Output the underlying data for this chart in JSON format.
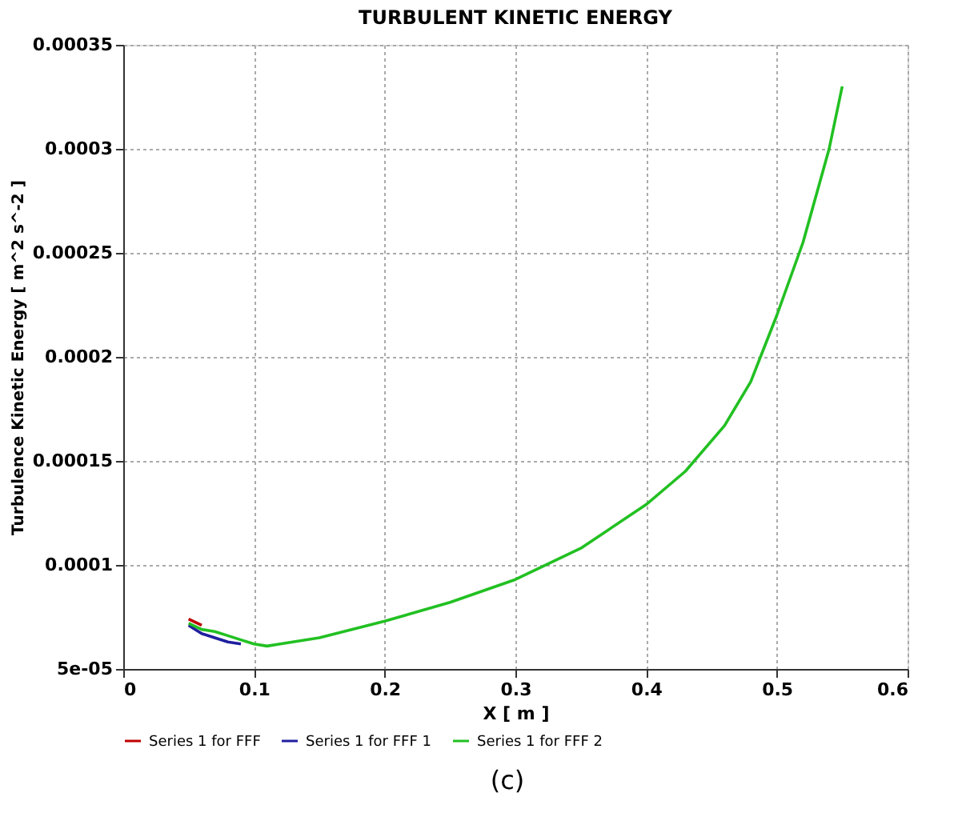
{
  "chart_data": {
    "type": "line",
    "title": "TURBULENT KINETIC ENERGY",
    "xlabel": "X [ m ]",
    "ylabel": "Turbulence Kinetic Energy [ m^2 s^-2 ]",
    "x": [
      0.05,
      0.06,
      0.07,
      0.08,
      0.09,
      0.1,
      0.11,
      0.12,
      0.15,
      0.2,
      0.25,
      0.3,
      0.35,
      0.4,
      0.43,
      0.46,
      0.48,
      0.5,
      0.52,
      0.54,
      0.55
    ],
    "series": [
      {
        "name": "Series 1 for FFF",
        "color": "#c00000",
        "values": [
          7.4e-05,
          7.1e-05,
          null,
          null,
          null,
          null,
          null,
          null,
          null,
          null,
          null,
          null,
          null,
          null,
          null,
          null,
          null,
          null,
          null,
          null,
          null
        ]
      },
      {
        "name": "Series 1 for FFF 1",
        "color": "#1f1f9f",
        "values": [
          7.1e-05,
          6.7e-05,
          6.5e-05,
          6.3e-05,
          6.2e-05,
          null,
          null,
          null,
          null,
          null,
          null,
          null,
          null,
          null,
          null,
          null,
          null,
          null,
          null,
          null,
          null
        ]
      },
      {
        "name": "Series 1 for FFF 2",
        "color": "#22c022",
        "values": [
          7.2e-05,
          6.9e-05,
          6.8e-05,
          6.6e-05,
          6.4e-05,
          6.2e-05,
          6.1e-05,
          6.2e-05,
          6.5e-05,
          7.3e-05,
          8.2e-05,
          9.3e-05,
          0.000108,
          0.000129,
          0.000145,
          0.000167,
          0.000188,
          0.00022,
          0.000255,
          0.0003,
          0.00033
        ]
      }
    ],
    "xlim": [
      0,
      0.6
    ],
    "xticks": [
      0,
      0.1,
      0.2,
      0.3,
      0.4,
      0.5,
      0.6
    ],
    "ylim": [
      5e-05,
      0.00035
    ],
    "yticks": [
      {
        "value": 5e-05,
        "label": "5e-05"
      },
      0.0001,
      0.00015,
      0.0002,
      0.00025,
      0.0003,
      0.00035
    ],
    "grid": true,
    "legend": "bottom",
    "line_style": "solid",
    "marker": "none",
    "annotations": [
      "(c)"
    ]
  }
}
